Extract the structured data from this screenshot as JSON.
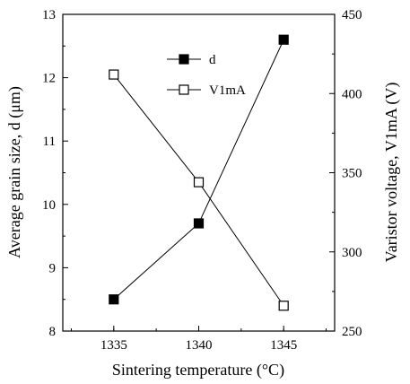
{
  "chart_data": {
    "type": "line",
    "x": [
      1335,
      1340,
      1345
    ],
    "xlabel": "Sintering temperature (°C)",
    "ylabel_left": "Average grain size, d (μm)",
    "ylabel_right": "Varistor voltage, V1mA (V)",
    "xlim": [
      1332,
      1348
    ],
    "ylim_left": [
      8,
      13
    ],
    "ylim_right": [
      250,
      450
    ],
    "x_ticks": [
      "1335",
      "1340",
      "1345"
    ],
    "y_ticks_left": [
      "8",
      "9",
      "10",
      "11",
      "12",
      "13"
    ],
    "y_ticks_right": [
      "250",
      "300",
      "350",
      "400",
      "450"
    ],
    "legend_position": "top-center",
    "grid": false,
    "series": [
      {
        "name": "d",
        "axis": "left",
        "marker": "filled-square",
        "values": [
          8.5,
          9.7,
          12.6
        ]
      },
      {
        "name": "V1mA",
        "axis": "right",
        "marker": "open-square",
        "values": [
          412,
          344,
          266
        ]
      }
    ]
  }
}
